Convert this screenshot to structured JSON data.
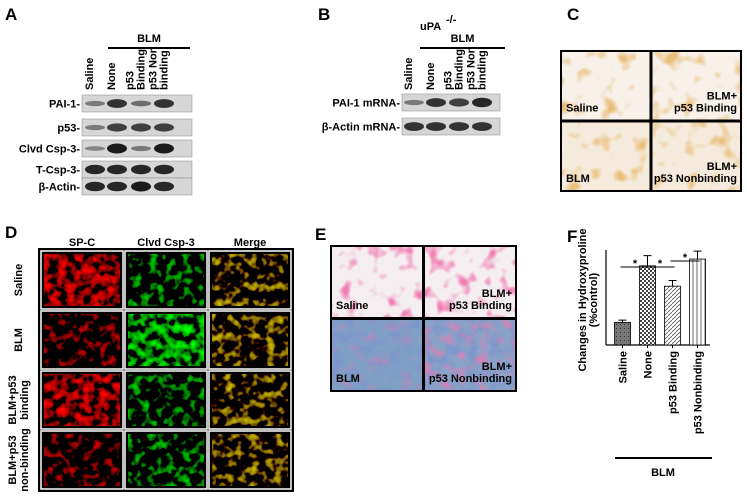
{
  "panels": {
    "A": {
      "label": "A",
      "group": "BLM",
      "lanes": [
        [
          "Saline"
        ],
        [
          "None"
        ],
        [
          "p53",
          "Binding"
        ],
        [
          "p53 Non",
          "binding"
        ]
      ],
      "rows": [
        "PAI-1-",
        "p53-",
        "Clvd Csp-3-",
        "T-Csp-3-",
        "β-Actin-"
      ]
    },
    "B": {
      "label": "B",
      "strain": "uPA",
      "strain_sup": "-/-",
      "group": "BLM",
      "lanes": [
        [
          "Saline"
        ],
        [
          "None"
        ],
        [
          "p53",
          "Binding"
        ],
        [
          "p53 Non",
          "binding"
        ]
      ],
      "rows": [
        "PAI-1 mRNA-",
        "β-Actin mRNA-"
      ]
    },
    "C": {
      "label": "C",
      "quadrants": [
        [
          "Saline"
        ],
        [
          "BLM+",
          "p53 Binding"
        ],
        [
          "BLM"
        ],
        [
          "BLM+",
          "p53 Nonbinding"
        ]
      ]
    },
    "D": {
      "label": "D",
      "columns": [
        "SP-C",
        "Clvd Csp-3",
        "Merge"
      ],
      "rows": [
        [
          "Saline"
        ],
        [
          "BLM"
        ],
        [
          "BLM+p53",
          "binding"
        ],
        [
          "BLM+p53",
          "non-binding"
        ]
      ]
    },
    "E": {
      "label": "E",
      "quadrants": [
        [
          "Saline"
        ],
        [
          "BLM+",
          "p53 Binding"
        ],
        [
          "BLM"
        ],
        [
          "BLM+",
          "p53 Nonbinding"
        ]
      ]
    },
    "F": {
      "label": "F"
    }
  },
  "chart_data": {
    "type": "bar",
    "y_label": [
      "Changes in Hydroxyproline",
      "(%control)"
    ],
    "categories": [
      "Saline",
      "None",
      "p53 Binding",
      "p53 Nonbinding"
    ],
    "values": [
      100,
      350,
      260,
      380
    ],
    "errors": [
      10,
      45,
      25,
      35
    ],
    "ylim": [
      0,
      420
    ],
    "significance": [
      "*",
      "*",
      "*"
    ],
    "group": "BLM"
  }
}
